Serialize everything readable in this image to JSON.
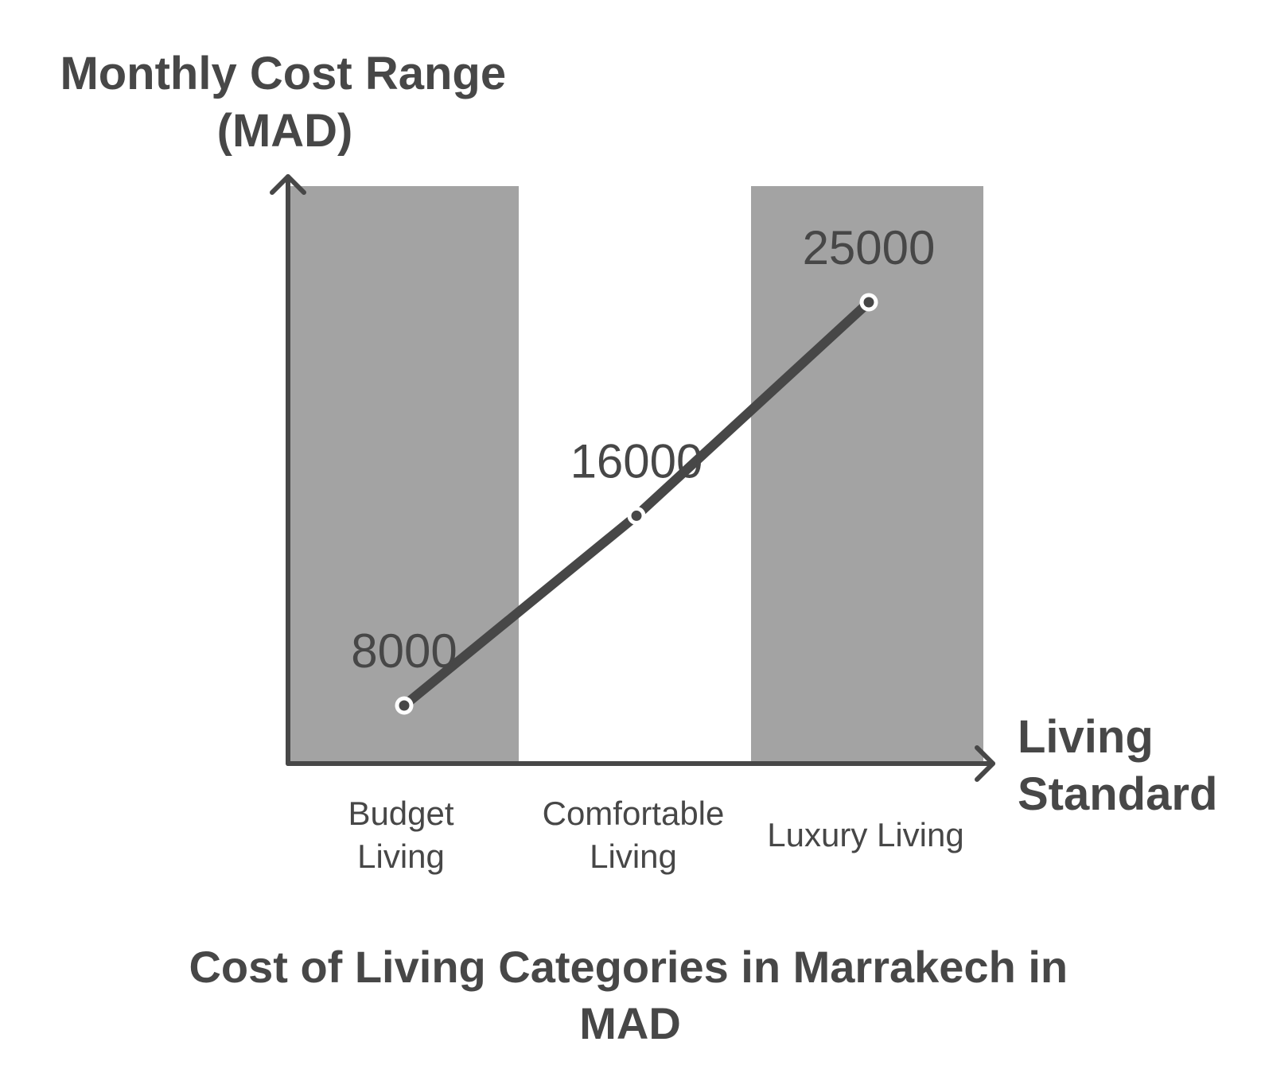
{
  "chart_data": {
    "type": "line",
    "title_lines": [
      "Cost of Living Categories in Marrakech in",
      "MAD"
    ],
    "ylabel_lines": [
      "Monthly Cost Range",
      "(MAD)"
    ],
    "xlabel_lines": [
      "Living",
      "Standard"
    ],
    "categories": [
      [
        "Budget",
        "Living"
      ],
      [
        "Comfortable",
        "Living"
      ],
      [
        "Luxury Living"
      ]
    ],
    "values": [
      8000,
      16000,
      25000
    ],
    "data_labels": [
      "8000",
      "16000",
      "25000"
    ],
    "ylim": [
      5000,
      30000
    ],
    "grid": false,
    "colors": {
      "line": "#474747",
      "band": "#a3a3a3",
      "text": "#474747",
      "axis": "#474747",
      "marker_fill": "#ffffff",
      "marker_stroke": "#474747"
    }
  }
}
